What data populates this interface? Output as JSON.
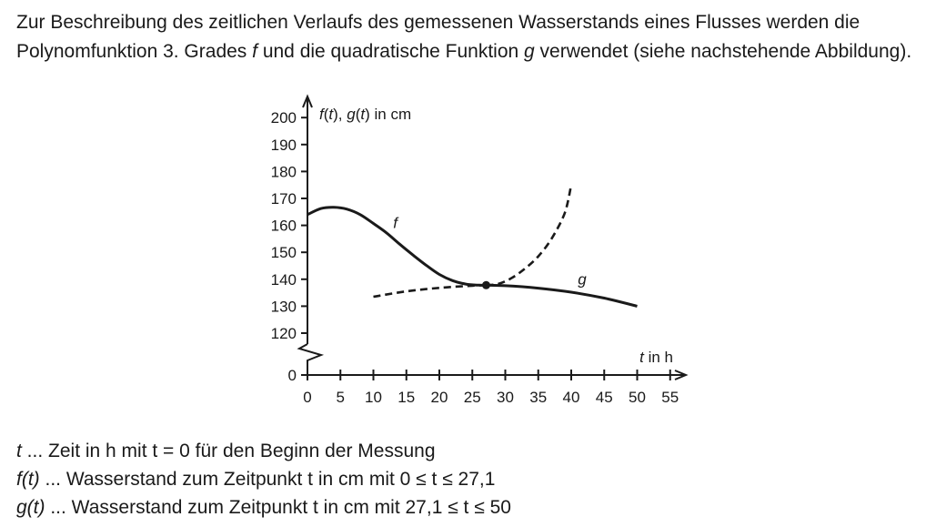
{
  "intro": {
    "part1": "Zur Beschreibung des zeitlichen Verlaufs des gemessenen Wasserstands eines Flusses werden die Polynomfunktion 3. Grades ",
    "f_symbol": "f",
    "part2": " und die quadratische Funktion ",
    "g_symbol": "g",
    "part3": " verwendet (siehe nachstehende Abbildung)."
  },
  "chart_data": {
    "type": "line",
    "ylabel": "f(t), g(t) in cm",
    "xlabel": "t in h",
    "x_ticks": [
      0,
      5,
      10,
      15,
      20,
      25,
      30,
      35,
      40,
      45,
      50,
      55
    ],
    "y_ticks": [
      0,
      120,
      130,
      140,
      150,
      160,
      170,
      180,
      190,
      200
    ],
    "y_axis_break": "between 0 and 120",
    "xlim": [
      0,
      55
    ],
    "ylim": [
      120,
      200
    ],
    "series": [
      {
        "name": "f",
        "style": "solid",
        "x": [
          0,
          2,
          4,
          6,
          8,
          10,
          12,
          14,
          16,
          18,
          20,
          22,
          24,
          26,
          27.1
        ],
        "y": [
          164,
          166.2,
          166.7,
          166,
          164,
          160.7,
          157.2,
          153,
          149,
          145.2,
          141.8,
          139.5,
          138.2,
          137.8,
          137.8
        ]
      },
      {
        "name": "g",
        "style": "solid",
        "x": [
          27.1,
          30,
          35,
          40,
          45,
          50
        ],
        "y": [
          137.8,
          137.6,
          136.7,
          135.2,
          133,
          130
        ]
      },
      {
        "style": "dashed",
        "x": [
          10,
          15,
          20,
          25,
          27.1
        ],
        "y": [
          133.5,
          135.5,
          136.8,
          137.6,
          137.8
        ]
      },
      {
        "style": "dashed",
        "x": [
          27.1,
          29,
          31,
          33,
          35,
          37,
          39,
          40
        ],
        "y": [
          137.8,
          138.3,
          140.5,
          144,
          148.5,
          155,
          164.5,
          175
        ]
      }
    ],
    "annotations": [
      {
        "text": "f",
        "x": 13,
        "y": 159
      },
      {
        "text": "g",
        "x": 41,
        "y": 138
      },
      {
        "point": [
          27.1,
          137.8
        ]
      }
    ]
  },
  "legend": [
    {
      "sym": "t",
      "text": " ... Zeit in h mit  t = 0  für den Beginn der Messung"
    },
    {
      "sym": "f(t)",
      "text": " ... Wasserstand zum Zeitpunkt t in cm mit  0 ≤ t ≤ 27,1"
    },
    {
      "sym": "g(t)",
      "text": " ... Wasserstand zum Zeitpunkt t in cm mit  27,1 ≤ t ≤ 50"
    }
  ]
}
